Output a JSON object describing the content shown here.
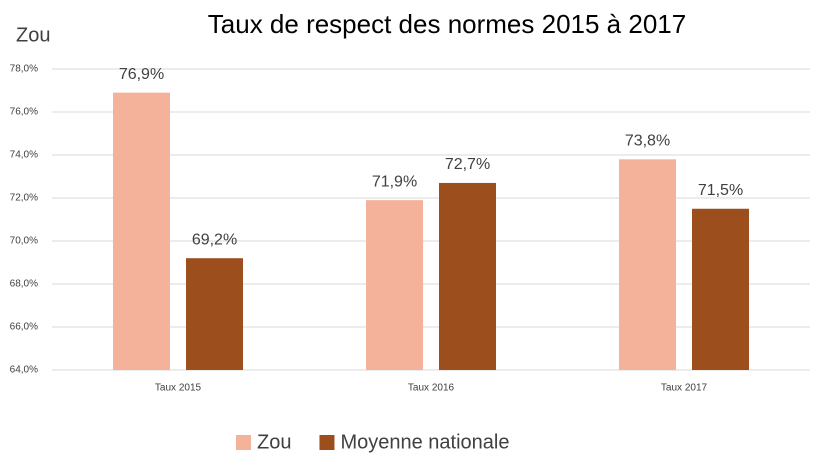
{
  "chart_data": {
    "type": "bar",
    "title": "Taux de respect des normes 2015 à 2017",
    "y_label": "Zou",
    "categories": [
      "Taux 2015",
      "Taux 2016",
      "Taux 2017"
    ],
    "series": [
      {
        "name": "Zou",
        "color": "#f4b29a",
        "values": [
          76.9,
          71.9,
          73.8
        ],
        "value_labels": [
          "76,9%",
          "71,9%",
          "73,8%"
        ]
      },
      {
        "name": "Moyenne nationale",
        "color": "#9c4f1c",
        "values": [
          69.2,
          72.7,
          71.5
        ],
        "value_labels": [
          "69,2%",
          "72,7%",
          "71,5%"
        ]
      }
    ],
    "ylim": [
      64,
      78
    ],
    "yticks": [
      {
        "value": 64,
        "label": "64,0%"
      },
      {
        "value": 66,
        "label": "66,0%"
      },
      {
        "value": 68,
        "label": "68,0%"
      },
      {
        "value": 70,
        "label": "70,0%"
      },
      {
        "value": 72,
        "label": "72,0%"
      },
      {
        "value": 74,
        "label": "74,0%"
      },
      {
        "value": 76,
        "label": "76,0%"
      },
      {
        "value": 78,
        "label": "78,0%"
      }
    ],
    "grid": true,
    "legend": "bottom"
  }
}
